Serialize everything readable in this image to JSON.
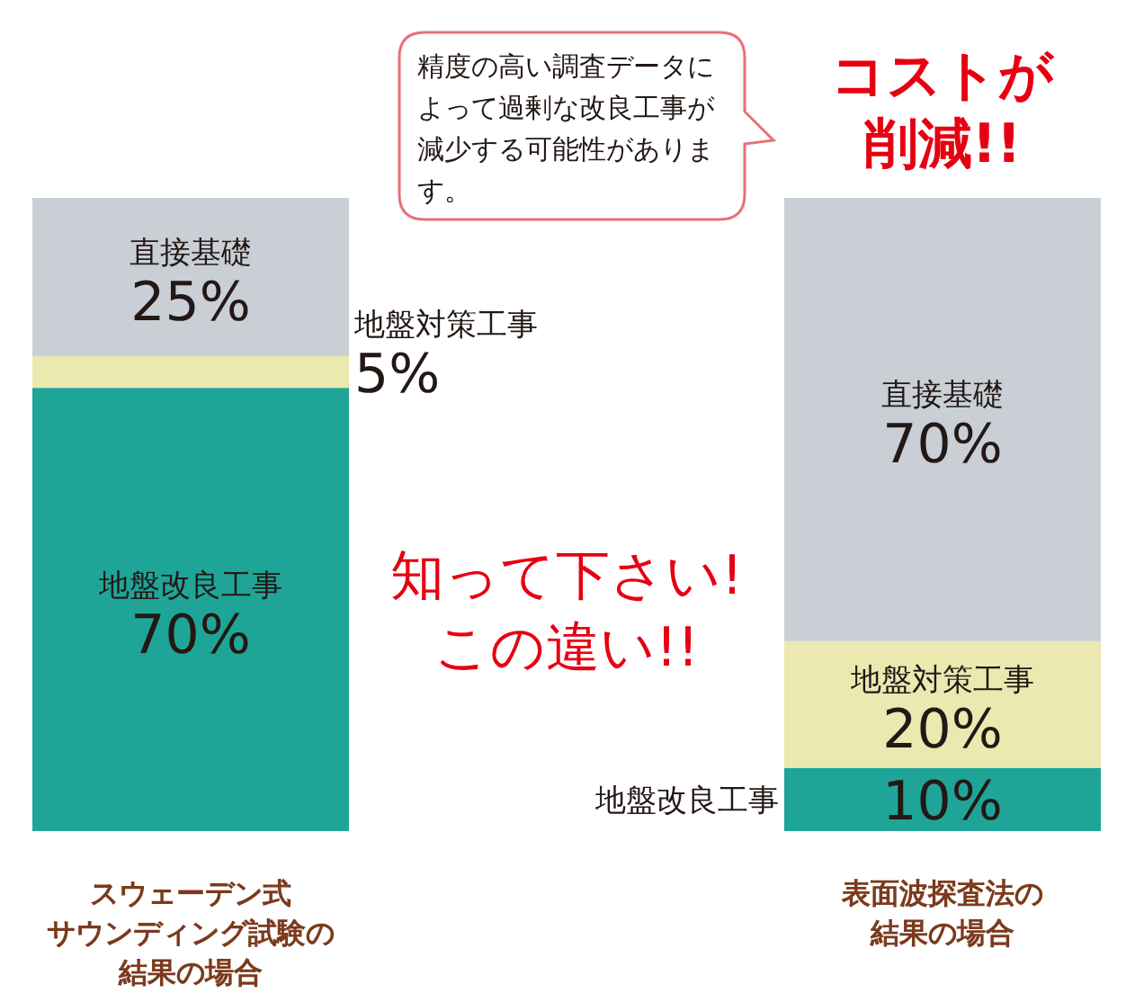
{
  "chart_data": {
    "type": "bar",
    "stacked": true,
    "tick_labels": "x",
    "categories": [
      "スウェーデン式サウンディング試験の結果の場合",
      "表面波探査法の結果の場合"
    ],
    "series": [
      {
        "name": "地盤改良工事",
        "color": "#1fa597",
        "values": [
          70,
          10
        ],
        "value_labels": [
          "70%",
          "10%"
        ]
      },
      {
        "name": "地盤対策工事",
        "color": "#ebe8b0",
        "values": [
          5,
          20
        ],
        "value_labels": [
          "5%",
          "20%"
        ]
      },
      {
        "name": "直接基礎",
        "color": "#c9cfd5",
        "values": [
          25,
          70
        ],
        "value_labels": [
          "25%",
          "70%"
        ]
      }
    ],
    "annotations": [
      "精度の高い調査データによって過剰な改良工事が減少する可能性があります。",
      "コストが削減!!",
      "知って下さい!この違い!!"
    ]
  }
}
